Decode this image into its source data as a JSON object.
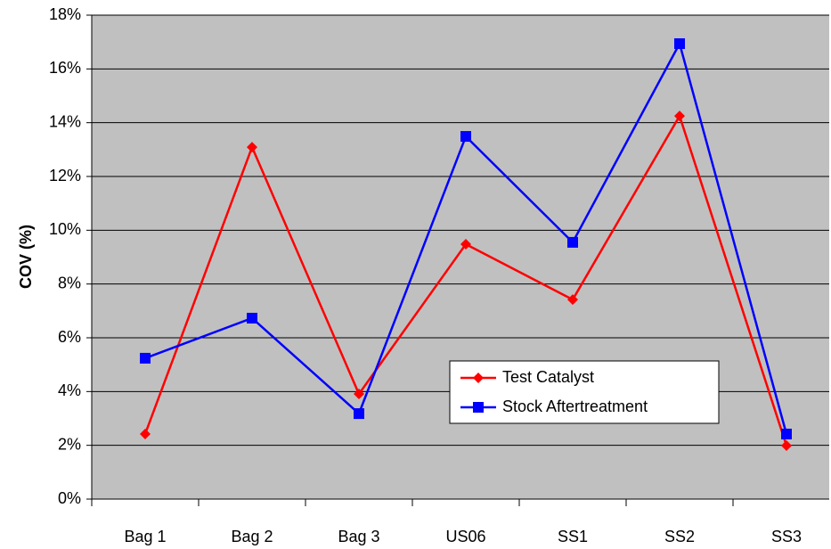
{
  "chart_data": {
    "type": "line",
    "y_label": "COV (%)",
    "categories": [
      "Bag 1",
      "Bag 2",
      "Bag 3",
      "US06",
      "SS1",
      "SS2",
      "SS3"
    ],
    "series": [
      {
        "name": "Test Catalyst",
        "color": "#ff0000",
        "marker": "diamond",
        "values": [
          2.42,
          13.09,
          3.91,
          9.48,
          7.42,
          14.25,
          1.99
        ]
      },
      {
        "name": "Stock Aftertreatment",
        "color": "#0000ff",
        "marker": "square",
        "values": [
          5.24,
          6.73,
          3.18,
          13.49,
          9.55,
          16.94,
          2.42
        ]
      }
    ],
    "ylim": [
      0,
      18
    ],
    "yticks": [
      {
        "value": 0,
        "label": "0%"
      },
      {
        "value": 2,
        "label": "2%"
      },
      {
        "value": 4,
        "label": "4%"
      },
      {
        "value": 6,
        "label": "6%"
      },
      {
        "value": 8,
        "label": "8%"
      },
      {
        "value": 10,
        "label": "10%"
      },
      {
        "value": 12,
        "label": "12%"
      },
      {
        "value": 14,
        "label": "14%"
      },
      {
        "value": 16,
        "label": "16%"
      },
      {
        "value": 18,
        "label": "18%"
      }
    ],
    "grid": true
  }
}
